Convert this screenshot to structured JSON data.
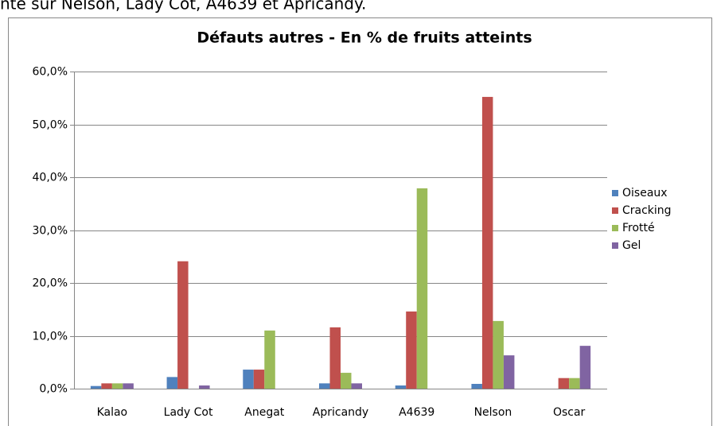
{
  "note": "nte sur Nelson, Lady Cot, A4639 et Apricandy.",
  "chart_data": {
    "type": "bar",
    "title": "Défauts autres - En % de fruits atteints",
    "categories": [
      "Kalao",
      "Lady Cot",
      "Anegat",
      "Apricandy",
      "A4639",
      "Nelson",
      "Oscar"
    ],
    "series": [
      {
        "name": "Oiseaux",
        "color": "#4f81bd",
        "values": [
          0.5,
          2.2,
          3.6,
          1.0,
          0.6,
          0.9,
          0
        ]
      },
      {
        "name": "Cracking",
        "color": "#c0504d",
        "values": [
          1.0,
          24.1,
          3.6,
          11.6,
          14.6,
          55.2,
          2.0
        ]
      },
      {
        "name": "Frotté",
        "color": "#9bbb59",
        "values": [
          1.0,
          0,
          11.0,
          3.0,
          37.9,
          12.8,
          2.0
        ]
      },
      {
        "name": "Gel",
        "color": "#8064a2",
        "values": [
          1.0,
          0.6,
          0,
          1.0,
          0,
          6.3,
          8.1
        ]
      }
    ],
    "ylim": [
      0,
      60
    ],
    "yticks": [
      {
        "value": 0,
        "label": "0,0%"
      },
      {
        "value": 10,
        "label": "10,0%"
      },
      {
        "value": 20,
        "label": "20,0%"
      },
      {
        "value": 30,
        "label": "30,0%"
      },
      {
        "value": 40,
        "label": "40,0%"
      },
      {
        "value": 50,
        "label": "50,0%"
      },
      {
        "value": 60,
        "label": "60,0%"
      }
    ],
    "grid": true,
    "legend": "right"
  }
}
